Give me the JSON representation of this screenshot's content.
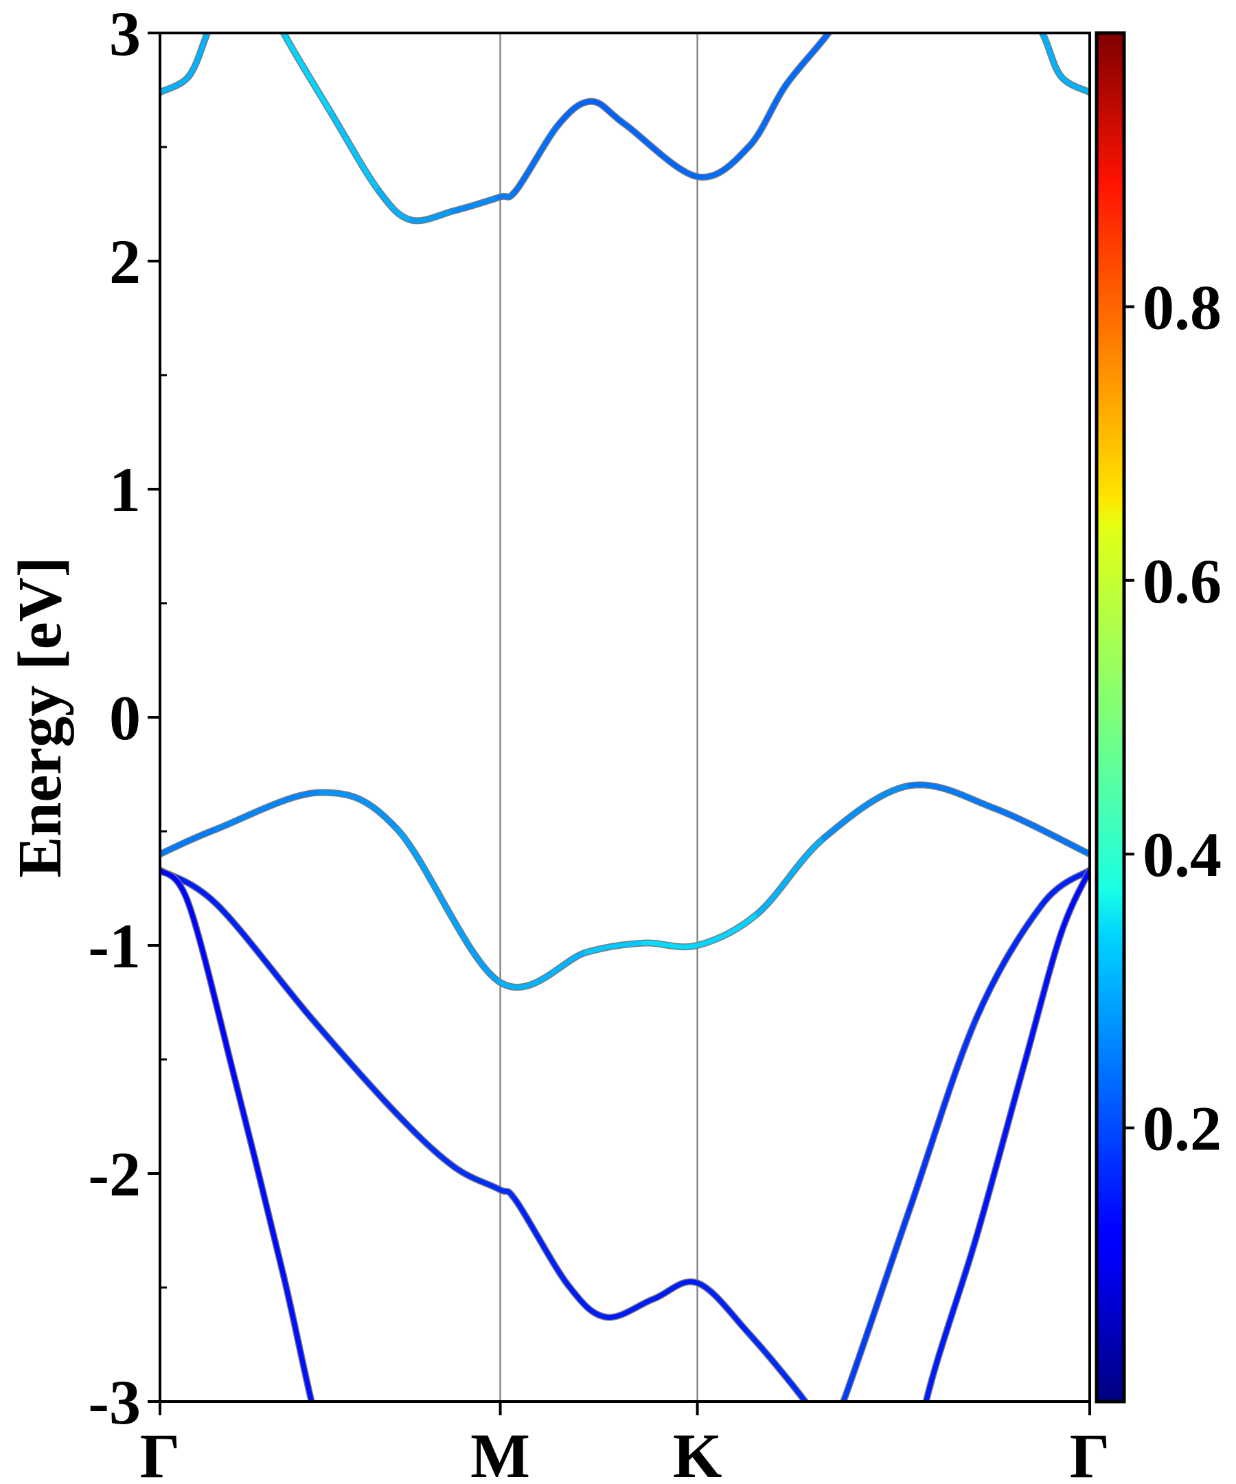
{
  "chart_data": {
    "type": "line",
    "title": "",
    "xlabel": "",
    "ylabel": "Energy [eV]",
    "ylim": [
      -3,
      3
    ],
    "yticks": [
      "3",
      "2",
      "1",
      "0",
      "-1",
      "-2",
      "-3"
    ],
    "ytick_values": [
      3,
      2,
      1,
      0,
      -1,
      -2,
      -3
    ],
    "yminor_step": 0.5,
    "xticks": [
      {
        "label": "Γ",
        "k": 0.0
      },
      {
        "label": "M",
        "k": 0.366
      },
      {
        "label": "K",
        "k": 0.578
      },
      {
        "label": "Γ",
        "k": 1.0
      }
    ],
    "colorbar": {
      "colormap": "jet",
      "range": [
        0,
        1
      ],
      "ticks": [
        "0.2",
        "0.4",
        "0.6",
        "0.8"
      ],
      "tick_values": [
        0.2,
        0.4,
        0.6,
        0.8
      ]
    },
    "series": [
      {
        "name": "conduction-band",
        "k": [
          0,
          0.031,
          0.051,
          0.07,
          0.112,
          0.133,
          0.184,
          0.235,
          0.27,
          0.316,
          0.365,
          0.383,
          0.429,
          0.464,
          0.5,
          0.578,
          0.633,
          0.673,
          0.719,
          0.75
        ],
        "E": [
          2.74,
          2.81,
          3.0,
          3.2,
          3.2,
          3.0,
          2.65,
          2.31,
          2.18,
          2.22,
          2.28,
          2.31,
          2.6,
          2.7,
          2.6,
          2.37,
          2.5,
          2.77,
          3.0,
          3.2
        ],
        "w": [
          0.3,
          0.3,
          0.3,
          0.33,
          0.33,
          0.34,
          0.33,
          0.31,
          0.29,
          0.27,
          0.25,
          0.24,
          0.23,
          0.22,
          0.22,
          0.23,
          0.23,
          0.23,
          0.23,
          0.23
        ]
      },
      {
        "name": "conduction-band-right",
        "k": [
          0.92,
          0.949,
          0.969,
          1.0
        ],
        "E": [
          3.2,
          3.0,
          2.81,
          2.74
        ],
        "w": [
          0.3,
          0.3,
          0.3,
          0.3
        ]
      },
      {
        "name": "valence-band-1",
        "k": [
          0,
          0.061,
          0.173,
          0.255,
          0.365,
          0.459,
          0.52,
          0.578,
          0.643,
          0.714,
          0.806,
          0.898,
          1.0
        ],
        "E": [
          -0.6,
          -0.49,
          -0.33,
          -0.49,
          -1.16,
          -1.03,
          -0.99,
          -1.0,
          -0.86,
          -0.53,
          -0.3,
          -0.4,
          -0.6
        ],
        "w": [
          0.24,
          0.25,
          0.26,
          0.28,
          0.29,
          0.31,
          0.33,
          0.35,
          0.32,
          0.28,
          0.25,
          0.24,
          0.24
        ]
      },
      {
        "name": "valence-band-2",
        "k": [
          0,
          0.061,
          0.163,
          0.255,
          0.316,
          0.365,
          0.383,
          0.439,
          0.48,
          0.531,
          0.578,
          0.633,
          0.694,
          0.715,
          0.735,
          0.806,
          0.878,
          0.949,
          1.0
        ],
        "E": [
          -0.67,
          -0.82,
          -1.32,
          -1.74,
          -1.97,
          -2.07,
          -2.12,
          -2.49,
          -2.63,
          -2.55,
          -2.48,
          -2.7,
          -3.0,
          -3.15,
          -3.0,
          -2.16,
          -1.32,
          -0.82,
          -0.67
        ],
        "w": [
          0.15,
          0.15,
          0.16,
          0.17,
          0.17,
          0.17,
          0.16,
          0.15,
          0.15,
          0.15,
          0.15,
          0.16,
          0.17,
          0.18,
          0.19,
          0.18,
          0.17,
          0.16,
          0.15
        ]
      },
      {
        "name": "valence-band-3",
        "k": [
          0,
          0.031,
          0.082,
          0.133,
          0.163,
          0.2,
          0.8,
          0.824,
          0.878,
          0.929,
          0.969,
          1.0
        ],
        "E": [
          -0.67,
          -0.82,
          -1.61,
          -2.45,
          -3.0,
          -3.6,
          -3.6,
          -3.0,
          -2.28,
          -1.53,
          -0.95,
          -0.67
        ],
        "w": [
          0.13,
          0.13,
          0.13,
          0.14,
          0.14,
          0.14,
          0.15,
          0.15,
          0.15,
          0.14,
          0.14,
          0.13
        ]
      }
    ]
  }
}
